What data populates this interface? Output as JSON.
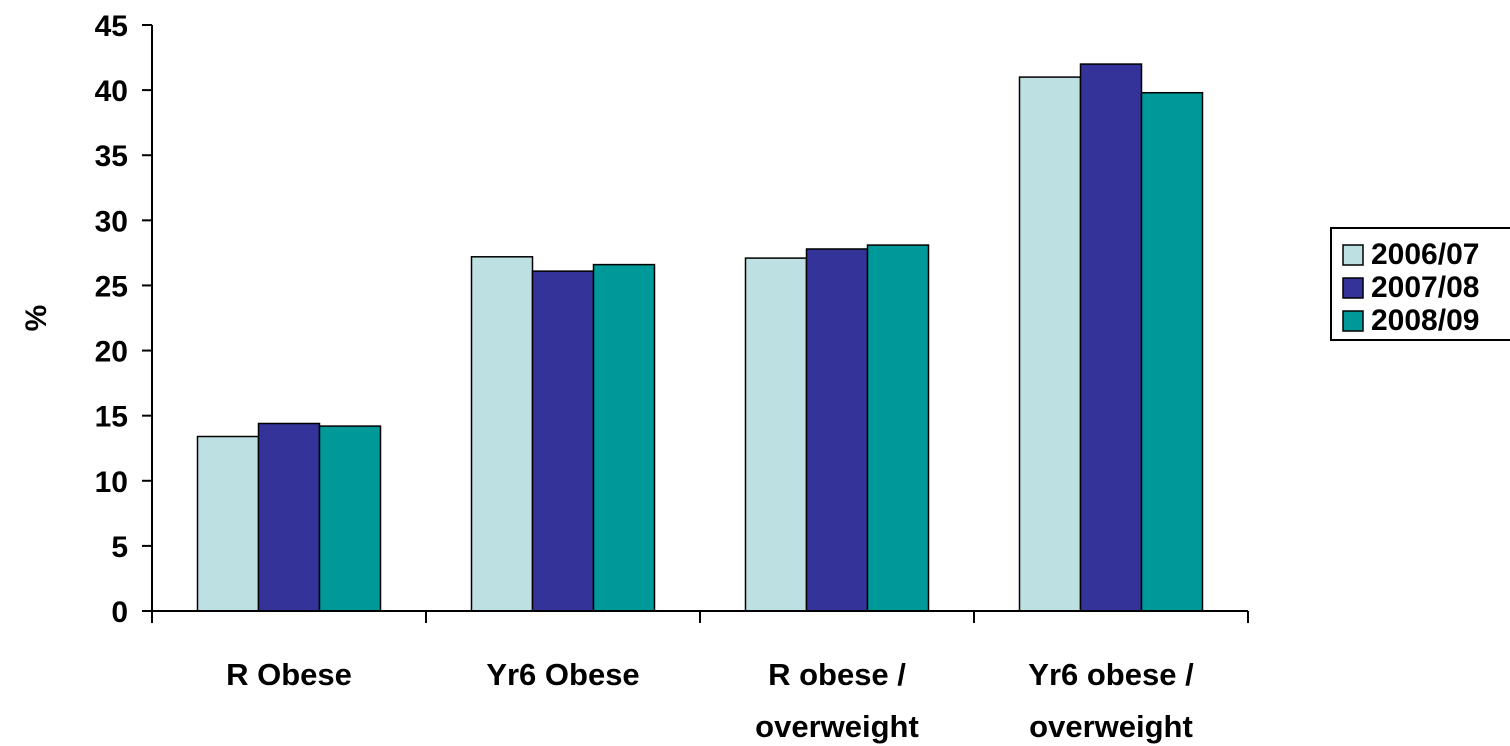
{
  "chart_data": {
    "type": "bar",
    "title": "",
    "xlabel": "",
    "ylabel": "%",
    "ylim": [
      0,
      45
    ],
    "yticks": [
      0,
      5,
      10,
      15,
      20,
      25,
      30,
      35,
      40,
      45
    ],
    "grid": false,
    "legend_position": "right",
    "categories": [
      [
        "R Obese"
      ],
      [
        "Yr6 Obese"
      ],
      [
        "R obese /",
        "overweight"
      ],
      [
        "Yr6 obese /",
        "overweight"
      ]
    ],
    "series": [
      {
        "name": "2006/07",
        "color": "#bde0e3",
        "values": [
          13.4,
          27.2,
          27.1,
          41.0
        ]
      },
      {
        "name": "2007/08",
        "color": "#333399",
        "values": [
          14.4,
          26.1,
          27.8,
          42.0
        ]
      },
      {
        "name": "2008/09",
        "color": "#009999",
        "values": [
          14.2,
          26.6,
          28.1,
          39.8
        ]
      }
    ]
  }
}
